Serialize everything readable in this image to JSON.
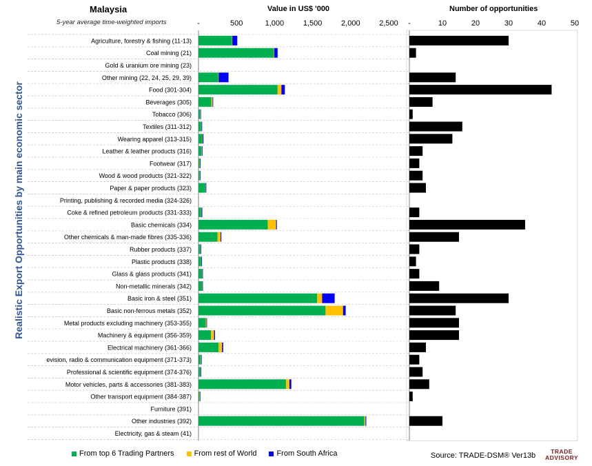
{
  "header": {
    "country": "Malaysia",
    "subtitle": "5-year average time-weighted imports",
    "value_title": "Value in US$ '000",
    "opportunities_title": "Number of opportunities",
    "y_axis_label": "Realistic Export Opportunities by main economic sector"
  },
  "legend": {
    "items": [
      {
        "label": "From top 6 Trading Partners",
        "color": "#00B050"
      },
      {
        "label": "From rest of World",
        "color": "#FFC000"
      },
      {
        "label": "From South Africa",
        "color": "#0000FF"
      }
    ]
  },
  "footer": {
    "source": "Source: TRADE-DSM®  Ver13b",
    "logo_line1": "TRADE",
    "logo_line2": "ADVISORY"
  },
  "chart_data": [
    {
      "type": "bar",
      "orientation": "horizontal",
      "stacked": true,
      "title": "Value in US$ '000",
      "xlim": [
        0,
        2500
      ],
      "x_ticks": [
        "-",
        "500",
        "1,000",
        "1,500",
        "2,000",
        "2,500"
      ],
      "grid": false,
      "legend_position": "bottom",
      "categories": [
        "Agriculture, forestry & fishing (11-13)",
        "Coal mining (21)",
        "Gold & uranium ore mining (23)",
        "Other mining (22, 24, 25, 29, 39)",
        "Food (301-304)",
        "Beverages (305)",
        "Tobacco (306)",
        "Textiles (311-312)",
        "Wearing apparel (313-315)",
        "Leather & leather products (316)",
        "Footwear (317)",
        "Wood & wood products (321-322)",
        "Paper & paper products (323)",
        "Printing, publishing & recorded media (324-326)",
        "Coke & refined petroleum products (331-333)",
        "Basic chemicals (334)",
        "Other chemicals & man-made fibres (335-336)",
        "Rubber products (337)",
        "Plastic products (338)",
        "Glass & glass products (341)",
        "Non-metallic minerals (342)",
        "Basic iron & steel (351)",
        "Basic non-ferrous metals (352)",
        "Metal products excluding machinery (353-355)",
        "Machinery & equipment (356-359)",
        "Electrical machinery (361-366)",
        "evision, radio & communication equipment (371-373)",
        "Professional & scientific equipment (374-376)",
        "Motor vehicles, parts & accessories (381-383)",
        "Other transport equipment (384-387)",
        "Furniture (391)",
        "Other industries (392)",
        "Electricity, gas & steam (41)"
      ],
      "series": [
        {
          "name": "From top 6 Trading Partners",
          "color": "#00B050",
          "values": [
            440,
            990,
            0,
            260,
            1040,
            170,
            20,
            35,
            50,
            40,
            15,
            15,
            90,
            0,
            35,
            910,
            250,
            25,
            35,
            45,
            45,
            1560,
            1670,
            95,
            165,
            265,
            30,
            25,
            1150,
            12,
            0,
            2180,
            0
          ]
        },
        {
          "name": "From rest of World",
          "color": "#FFC000",
          "values": [
            5,
            5,
            0,
            5,
            50,
            15,
            5,
            5,
            5,
            5,
            5,
            3,
            5,
            0,
            5,
            110,
            40,
            3,
            3,
            5,
            5,
            65,
            230,
            10,
            40,
            45,
            5,
            3,
            45,
            5,
            0,
            15,
            0
          ]
        },
        {
          "name": "From South Africa",
          "color": "#0000FF",
          "values": [
            65,
            45,
            0,
            130,
            45,
            8,
            3,
            8,
            10,
            5,
            3,
            5,
            8,
            0,
            10,
            10,
            10,
            5,
            8,
            8,
            8,
            165,
            35,
            5,
            12,
            15,
            5,
            5,
            25,
            5,
            0,
            10,
            0
          ]
        }
      ]
    },
    {
      "type": "bar",
      "orientation": "horizontal",
      "title": "Number of opportunities",
      "xlim": [
        0,
        50
      ],
      "x_ticks": [
        "-",
        "10",
        "20",
        "30",
        "40",
        "50"
      ],
      "grid": false,
      "series": [
        {
          "color": "#000000",
          "values": [
            30,
            2,
            0,
            14,
            43,
            7,
            1,
            16,
            13,
            4,
            3,
            4,
            5,
            0,
            3,
            35,
            15,
            3,
            2,
            3,
            9,
            30,
            14,
            15,
            15,
            5,
            3,
            4,
            6,
            1,
            0,
            10,
            0
          ]
        }
      ]
    }
  ]
}
